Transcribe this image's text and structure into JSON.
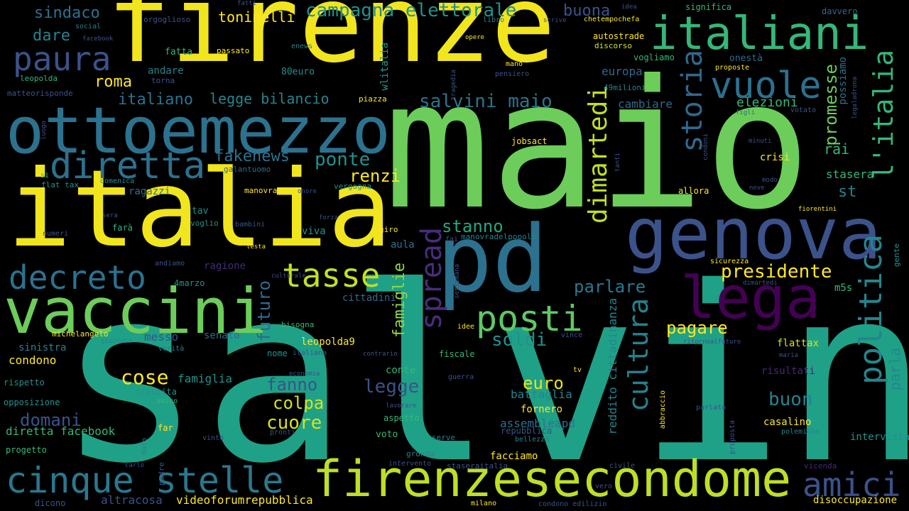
{
  "background_color": "#000000",
  "words": [
    {
      "text": "salvini",
      "color": "#1fa187"
    },
    {
      "text": "maio",
      "color": "#6ccd5a"
    },
    {
      "text": "firenze",
      "color": "#f1e51d"
    },
    {
      "text": "italia",
      "color": "#f1e51d"
    },
    {
      "text": "pd",
      "color": "#2c718e"
    },
    {
      "text": "genova",
      "color": "#3b528b"
    },
    {
      "text": "ottoemezzo",
      "color": "#2c728e"
    },
    {
      "text": "vaccini",
      "color": "#6ccd5a"
    },
    {
      "text": "firenzesecondome",
      "color": "#bddf26"
    },
    {
      "text": "italiani",
      "color": "#35b779"
    },
    {
      "text": "lega",
      "color": "#440154"
    },
    {
      "text": "paura",
      "color": "#3b528b"
    },
    {
      "text": "cinque stelle",
      "color": "#2a788e"
    },
    {
      "text": "diretta",
      "color": "#2c718e"
    },
    {
      "text": "decreto",
      "color": "#2c718e"
    },
    {
      "text": "tasse",
      "color": "#c2df23"
    },
    {
      "text": "posti",
      "color": "#5ec962"
    },
    {
      "text": "vuole",
      "color": "#2c718e"
    },
    {
      "text": "politica",
      "color": "#25858e"
    },
    {
      "text": "amici",
      "color": "#3b528b"
    },
    {
      "text": "cultura",
      "color": "#26828e"
    },
    {
      "text": "spread",
      "color": "#472d7b"
    },
    {
      "text": "storia",
      "color": "#31688e"
    },
    {
      "text": "l'italia",
      "color": "#35b779"
    },
    {
      "text": "dimartedi",
      "color": "#c2df23"
    },
    {
      "text": "campagna elettorale",
      "color": "#21918c"
    },
    {
      "text": "salvini maio",
      "color": "#2c728e"
    },
    {
      "text": "presidente",
      "color": "#fde725"
    },
    {
      "text": "legge",
      "color": "#3b528b"
    },
    {
      "text": "colpa",
      "color": "#d8e219"
    },
    {
      "text": "cuore",
      "color": "#d8e219"
    },
    {
      "text": "cose",
      "color": "#fde725"
    },
    {
      "text": "parlare",
      "color": "#2a788e"
    },
    {
      "text": "stanno",
      "color": "#22a884"
    },
    {
      "text": "pagare",
      "color": "#fde725"
    },
    {
      "text": "famiglie",
      "color": "#90d743"
    },
    {
      "text": "futuro",
      "color": "#31688e"
    },
    {
      "text": "soldi",
      "color": "#21918c"
    },
    {
      "text": "euro",
      "color": "#e5e419"
    },
    {
      "text": "fanno",
      "color": "#3b528b"
    },
    {
      "text": "domani",
      "color": "#3b528b"
    },
    {
      "text": "promesse",
      "color": "#6ccd5a"
    },
    {
      "text": "buon",
      "color": "#26828e"
    },
    {
      "text": "renzi",
      "color": "#fde725"
    },
    {
      "text": "ponte",
      "color": "#21918c"
    },
    {
      "text": "fakenews",
      "color": "#2c728e"
    },
    {
      "text": "roma",
      "color": "#fde725"
    },
    {
      "text": "italiano",
      "color": "#2c728e"
    },
    {
      "text": "legge bilancio",
      "color": "#25858e"
    },
    {
      "text": "sindaco",
      "color": "#2c718e"
    },
    {
      "text": "dare",
      "color": "#26828e"
    },
    {
      "text": "buona",
      "color": "#3b528b"
    },
    {
      "text": "toninelli",
      "color": "#fde725"
    },
    {
      "text": "rai",
      "color": "#35b779"
    },
    {
      "text": "st",
      "color": "#26828e"
    },
    {
      "text": "reddito cittadinanza",
      "color": "#25858e"
    },
    {
      "text": "parla",
      "color": "#25858e"
    },
    {
      "text": "elezioni",
      "color": "#35b779"
    },
    {
      "text": "europa",
      "color": "#31688e"
    },
    {
      "text": "cambiare",
      "color": "#31688e"
    },
    {
      "text": "possiamo",
      "color": "#2c718e"
    },
    {
      "text": "stasera",
      "color": "#35b779"
    },
    {
      "text": "crisi",
      "color": "#fde725"
    },
    {
      "text": "wlitalia",
      "color": "#1f988b"
    },
    {
      "text": "diretta facebook",
      "color": "#35b779"
    },
    {
      "text": "altracosa",
      "color": "#3b528b"
    },
    {
      "text": "videoforumrepubblica",
      "color": "#fde725"
    },
    {
      "text": "assembleapd",
      "color": "#2c718e"
    },
    {
      "text": "battaglia",
      "color": "#26828e"
    },
    {
      "text": "conte",
      "color": "#35b779"
    },
    {
      "text": "fornero",
      "color": "#fde725"
    },
    {
      "text": "risultati",
      "color": "#482878"
    },
    {
      "text": "flattax",
      "color": "#d8e219"
    },
    {
      "text": "disoccupazione",
      "color": "#fde725"
    },
    {
      "text": "intervista",
      "color": "#21918c"
    },
    {
      "text": "casalino",
      "color": "#fde725"
    },
    {
      "text": "famiglia",
      "color": "#21918c"
    },
    {
      "text": "messo",
      "color": "#3b528b"
    },
    {
      "text": "senato",
      "color": "#31688e"
    },
    {
      "text": "condono",
      "color": "#fde725"
    },
    {
      "text": "sinistra",
      "color": "#26828e"
    },
    {
      "text": "m5s",
      "color": "#35b779"
    },
    {
      "text": "facciamo",
      "color": "#fde725"
    },
    {
      "text": "aula",
      "color": "#2c718e"
    },
    {
      "text": "viva",
      "color": "#1f988b"
    },
    {
      "text": "tav",
      "color": "#21918c"
    },
    {
      "text": "leopolda9",
      "color": "#fde725"
    },
    {
      "text": "cittadini",
      "color": "#31688e"
    },
    {
      "text": "ragione",
      "color": "#482878"
    },
    {
      "text": "ragazzi",
      "color": "#2c718e"
    },
    {
      "text": "andare",
      "color": "#26828e"
    },
    {
      "text": "fatta",
      "color": "#35b779"
    },
    {
      "text": "80euro",
      "color": "#21918c"
    },
    {
      "text": "onestà",
      "color": "#31688e"
    },
    {
      "text": "orgoglioso",
      "color": "#3b528b"
    },
    {
      "text": "vogliamo",
      "color": "#35b779"
    },
    {
      "text": "autostrade",
      "color": "#fde725"
    },
    {
      "text": "discorso",
      "color": "#d8e219"
    },
    {
      "text": "allora",
      "color": "#fde725"
    },
    {
      "text": "jobsact",
      "color": "#fde725"
    },
    {
      "text": "49milioni",
      "color": "#26828e"
    },
    {
      "text": "significa",
      "color": "#35b779"
    },
    {
      "text": "davvero",
      "color": "#31688e"
    },
    {
      "text": "idea",
      "color": "#3b528b"
    },
    {
      "text": "chetempochefa",
      "color": "#fde725"
    },
    {
      "text": "libro",
      "color": "#26828e"
    },
    {
      "text": "scrive",
      "color": "#3b528b"
    },
    {
      "text": "opere",
      "color": "#fde725"
    },
    {
      "text": "passato",
      "color": "#fde725"
    },
    {
      "text": "fatti",
      "color": "#3b528b"
    },
    {
      "text": "social",
      "color": "#26828e"
    },
    {
      "text": "facebook",
      "color": "#3b528b"
    },
    {
      "text": "enews",
      "color": "#26828e"
    },
    {
      "text": "leopolda",
      "color": "#35b779"
    },
    {
      "text": "torna",
      "color": "#3b528b"
    },
    {
      "text": "matteorisponde",
      "color": "#3b528b"
    },
    {
      "text": "mano",
      "color": "#fde725"
    },
    {
      "text": "pensiero",
      "color": "#3b528b"
    },
    {
      "text": "tragedia",
      "color": "#3b528b"
    },
    {
      "text": "piazza",
      "color": "#fde725"
    },
    {
      "text": "proposte",
      "color": "#fde725"
    },
    {
      "text": "legaladrona",
      "color": "#3b528b"
    },
    {
      "text": "figli",
      "color": "#31688e"
    },
    {
      "text": "votato",
      "color": "#3b528b"
    },
    {
      "text": "luogo",
      "color": "#3b528b"
    },
    {
      "text": "condoni",
      "color": "#3b528b"
    },
    {
      "text": "minuti",
      "color": "#3b528b"
    },
    {
      "text": "tanti",
      "color": "#3b528b"
    },
    {
      "text": "modo",
      "color": "#3b528b"
    },
    {
      "text": "nove",
      "color": "#3b528b"
    },
    {
      "text": "galantuomo",
      "color": "#31688e"
    },
    {
      "text": "vergogna",
      "color": "#21918c"
    },
    {
      "text": "si",
      "color": "#35b779"
    },
    {
      "text": "flat tax",
      "color": "#21918c"
    },
    {
      "text": "domenica",
      "color": "#21918c"
    },
    {
      "text": "manovra",
      "color": "#fde725"
    },
    {
      "text": "onore",
      "color": "#3b528b"
    },
    {
      "text": "fiorentini",
      "color": "#fde725"
    },
    {
      "text": "forza",
      "color": "#3b528b"
    },
    {
      "text": "sera",
      "color": "#3b528b"
    },
    {
      "text": "farà",
      "color": "#35b779"
    },
    {
      "text": "voglio",
      "color": "#21918c"
    },
    {
      "text": "bambini",
      "color": "#3b528b"
    },
    {
      "text": "giro",
      "color": "#fde725"
    },
    {
      "text": "manovradelpopolo",
      "color": "#26828e"
    },
    {
      "text": "fai",
      "color": "#3b528b"
    },
    {
      "text": "numeri",
      "color": "#3b528b"
    },
    {
      "text": "testa",
      "color": "#fde725"
    },
    {
      "text": "andiamo",
      "color": "#3b528b"
    },
    {
      "text": "sicurezza",
      "color": "#fde725"
    },
    {
      "text": "dimartedi",
      "color": "#3b528b"
    },
    {
      "text": "gente",
      "color": "#21918c"
    },
    {
      "text": "4marzo",
      "color": "#21918c"
    },
    {
      "text": "culturale",
      "color": "#3b528b"
    },
    {
      "text": "settimana",
      "color": "#3b528b"
    },
    {
      "text": "bisogna",
      "color": "#35b779"
    },
    {
      "text": "michelangelo",
      "color": "#fde725"
    },
    {
      "text": "giornata",
      "color": "#26828e"
    },
    {
      "text": "verità",
      "color": "#26828e"
    },
    {
      "text": "idee",
      "color": "#fde725"
    },
    {
      "text": "vince",
      "color": "#3b528b"
    },
    {
      "text": "ritornoalfuturo",
      "color": "#3b528b"
    },
    {
      "text": "maria",
      "color": "#3b528b"
    },
    {
      "text": "nome",
      "color": "#21918c"
    },
    {
      "text": "italiana",
      "color": "#3b528b"
    },
    {
      "text": "contrario",
      "color": "#3b528b"
    },
    {
      "text": "fiscale",
      "color": "#35b779"
    },
    {
      "text": "rispetto",
      "color": "#21918c"
    },
    {
      "text": "crescita",
      "color": "#21918c"
    },
    {
      "text": "economia",
      "color": "#3b528b"
    },
    {
      "text": "guerra",
      "color": "#3b528b"
    },
    {
      "text": "tv",
      "color": "#fde725"
    },
    {
      "text": "opposizione",
      "color": "#21918c"
    },
    {
      "text": "amico",
      "color": "#35b779"
    },
    {
      "text": "lavorare",
      "color": "#3b528b"
    },
    {
      "text": "far",
      "color": "#fde725"
    },
    {
      "text": "aspetto",
      "color": "#35b779"
    },
    {
      "text": "repubblica",
      "color": "#3b528b"
    },
    {
      "text": "abbraccio",
      "color": "#fde725"
    },
    {
      "text": "parlato",
      "color": "#3b528b"
    },
    {
      "text": "polemiche",
      "color": "#26828e"
    },
    {
      "text": "bellezza",
      "color": "#26828e"
    },
    {
      "text": "voto",
      "color": "#35b779"
    },
    {
      "text": "serve",
      "color": "#26828e"
    },
    {
      "text": "pronti",
      "color": "#3b528b"
    },
    {
      "text": "progetto",
      "color": "#35b779"
    },
    {
      "text": "vinto",
      "color": "#3b528b"
    },
    {
      "text": "dato",
      "color": "#26828e"
    },
    {
      "text": "gronda",
      "color": "#26828e"
    },
    {
      "text": "proposta",
      "color": "#3b528b"
    },
    {
      "text": "intervento",
      "color": "#3b528b"
    },
    {
      "text": "staseraitalia",
      "color": "#3b528b"
    },
    {
      "text": "civile",
      "color": "#3b528b"
    },
    {
      "text": "vicenda",
      "color": "#482878"
    },
    {
      "text": "carlo",
      "color": "#3b528b"
    },
    {
      "text": "padre",
      "color": "#3b528b"
    },
    {
      "text": "vero",
      "color": "#3b528b"
    },
    {
      "text": "dicono",
      "color": "#3b528b"
    },
    {
      "text": "milano",
      "color": "#fde725"
    },
    {
      "text": "condono edilizio",
      "color": "#3b528b"
    }
  ]
}
